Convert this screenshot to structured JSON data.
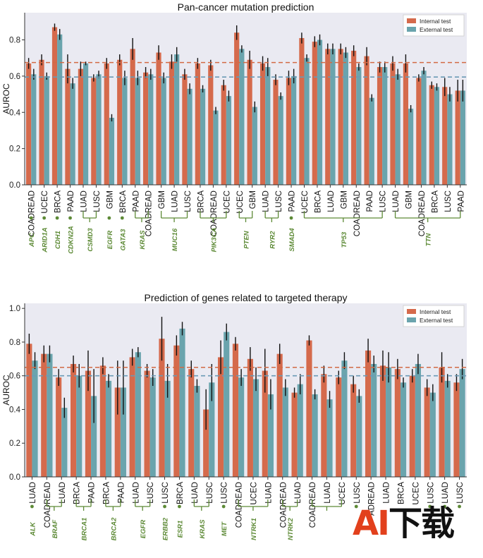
{
  "colors": {
    "internal": "#d56a4c",
    "external": "#6aa4ad",
    "internal_line": "#d26a44",
    "external_line": "#6b9ab5",
    "gene": "#5d8a36",
    "plot_bg": "#eaeaf2"
  },
  "chart_data": [
    {
      "type": "bar",
      "title": "Pan-cancer mutation prediction",
      "ylabel": "AUROC",
      "ylim": [
        0,
        0.95
      ],
      "yticks": [
        "0.0",
        "0.2",
        "0.4",
        "0.6",
        "0.8"
      ],
      "legend": {
        "placement": "top-right",
        "labels": [
          "Internal test",
          "External test"
        ]
      },
      "reference_lines": {
        "internal": 0.675,
        "external": 0.595
      },
      "grid": false,
      "categories": [
        "COADREAD",
        "UCEC",
        "BRCA",
        "PAAD",
        "LUAD",
        "LUSC",
        "GBM",
        "BRCA",
        "PAAD",
        "COADREAD",
        "GBM",
        "LUAD",
        "LUSC",
        "BRCA",
        "COADREAD",
        "UCEC",
        "UCEC",
        "GBM",
        "LUAD",
        "LUSC",
        "PAAD",
        "UCEC",
        "BRCA",
        "LUAD",
        "GBM",
        "COADREAD",
        "PAAD",
        "LUSC",
        "LUAD",
        "GBM",
        "COADREAD",
        "BRCA",
        "LUSC",
        "PAAD"
      ],
      "series": [
        {
          "name": "Internal test",
          "values": [
            0.67,
            0.69,
            0.87,
            0.64,
            0.64,
            0.59,
            0.67,
            0.69,
            0.75,
            0.62,
            0.73,
            0.68,
            0.61,
            0.67,
            0.66,
            0.55,
            0.84,
            0.69,
            0.67,
            0.58,
            0.59,
            0.81,
            0.79,
            0.75,
            0.75,
            0.74,
            0.71,
            0.65,
            0.67,
            0.67,
            0.59,
            0.55,
            0.54,
            0.52
          ],
          "errors": [
            0.03,
            0.03,
            0.02,
            0.08,
            0.04,
            0.02,
            0.03,
            0.03,
            0.06,
            0.03,
            0.04,
            0.04,
            0.03,
            0.03,
            0.03,
            0.03,
            0.04,
            0.05,
            0.04,
            0.03,
            0.04,
            0.03,
            0.03,
            0.03,
            0.03,
            0.03,
            0.05,
            0.03,
            0.04,
            0.05,
            0.02,
            0.02,
            0.05,
            0.06
          ]
        },
        {
          "name": "External test",
          "values": [
            0.61,
            0.6,
            0.83,
            0.56,
            0.67,
            0.61,
            0.37,
            0.59,
            0.59,
            0.61,
            0.59,
            0.72,
            0.53,
            0.53,
            0.41,
            0.49,
            0.75,
            0.43,
            0.65,
            0.49,
            0.6,
            0.7,
            0.8,
            0.75,
            0.73,
            0.65,
            0.48,
            0.65,
            0.61,
            0.42,
            0.63,
            0.54,
            0.5,
            0.52
          ],
          "errors": [
            0.03,
            0.02,
            0.03,
            0.03,
            0.01,
            0.02,
            0.02,
            0.04,
            0.04,
            0.03,
            0.03,
            0.04,
            0.03,
            0.02,
            0.02,
            0.03,
            0.02,
            0.03,
            0.05,
            0.02,
            0.04,
            0.02,
            0.03,
            0.03,
            0.03,
            0.02,
            0.02,
            0.03,
            0.03,
            0.02,
            0.02,
            0.02,
            0.04,
            0.06
          ]
        }
      ],
      "gene_groups": [
        {
          "gene": "APC",
          "start": 0,
          "end": 0
        },
        {
          "gene": "ARID1A",
          "start": 1,
          "end": 1
        },
        {
          "gene": "CDH1",
          "start": 2,
          "end": 2
        },
        {
          "gene": "CDKN2A",
          "start": 3,
          "end": 3
        },
        {
          "gene": "CSMD3",
          "start": 4,
          "end": 5
        },
        {
          "gene": "EGFR",
          "start": 6,
          "end": 6
        },
        {
          "gene": "GATA3",
          "start": 7,
          "end": 7
        },
        {
          "gene": "KRAS",
          "start": 8,
          "end": 9
        },
        {
          "gene": "MUC16",
          "start": 10,
          "end": 12
        },
        {
          "gene": "PIK3CA",
          "start": 13,
          "end": 15
        },
        {
          "gene": "PTEN",
          "start": 16,
          "end": 17
        },
        {
          "gene": "RYR2",
          "start": 18,
          "end": 19
        },
        {
          "gene": "SMAD4",
          "start": 20,
          "end": 20
        },
        {
          "gene": "TP53",
          "start": 21,
          "end": 27
        },
        {
          "gene": "TTN",
          "start": 28,
          "end": 33
        }
      ]
    },
    {
      "type": "bar",
      "title": "Prediction of genes related to targeted therapy",
      "ylabel": "AUROC",
      "ylim": [
        0,
        1.03
      ],
      "yticks": [
        "0.0",
        "0.2",
        "0.4",
        "0.6",
        "0.8",
        "1.0"
      ],
      "legend": {
        "placement": "top-right",
        "labels": [
          "Internal test",
          "External test"
        ]
      },
      "reference_lines": {
        "internal": 0.65,
        "external": 0.6
      },
      "grid": false,
      "categories": [
        "LUAD",
        "COADREAD",
        "LUAD",
        "BRCA",
        "PAAD",
        "BRCA",
        "PAAD",
        "LUAD",
        "LUSC",
        "LUSC",
        "BRCA",
        "LUAD",
        "LUSC",
        "LUSC",
        "COADREAD",
        "UCEC",
        "LUAD",
        "COADREAD",
        "LUAD",
        "COADREAD",
        "LUAD",
        "UCEC",
        "LUSC",
        "ADREAD",
        "LUAD",
        "BRCA",
        "UCEC",
        "LUSC",
        "LUAD",
        "LUSC"
      ],
      "series": [
        {
          "name": "Internal test",
          "values": [
            0.79,
            0.73,
            0.59,
            0.67,
            0.63,
            0.66,
            0.53,
            0.71,
            0.63,
            0.82,
            0.78,
            0.64,
            0.4,
            0.71,
            0.79,
            0.7,
            0.63,
            0.73,
            0.5,
            0.81,
            0.61,
            0.59,
            0.55,
            0.75,
            0.66,
            0.64,
            0.6,
            0.53,
            0.65,
            0.56
          ],
          "errors": [
            0.06,
            0.05,
            0.05,
            0.05,
            0.12,
            0.05,
            0.16,
            0.05,
            0.04,
            0.13,
            0.06,
            0.05,
            0.12,
            0.1,
            0.04,
            0.07,
            0.13,
            0.06,
            0.03,
            0.03,
            0.05,
            0.04,
            0.05,
            0.07,
            0.09,
            0.06,
            0.04,
            0.05,
            0.09,
            0.05
          ]
        },
        {
          "name": "External test",
          "values": [
            0.69,
            0.73,
            0.41,
            0.6,
            0.48,
            0.57,
            0.53,
            0.74,
            0.59,
            0.57,
            0.88,
            0.54,
            0.56,
            0.86,
            0.59,
            0.58,
            0.49,
            0.53,
            0.55,
            0.49,
            0.46,
            0.69,
            0.48,
            0.67,
            0.65,
            0.56,
            0.67,
            0.5,
            0.57,
            0.64
          ],
          "errors": [
            0.05,
            0.05,
            0.06,
            0.07,
            0.16,
            0.04,
            0.16,
            0.03,
            0.05,
            0.1,
            0.04,
            0.04,
            0.11,
            0.05,
            0.05,
            0.07,
            0.09,
            0.05,
            0.06,
            0.03,
            0.05,
            0.05,
            0.04,
            0.05,
            0.09,
            0.03,
            0.06,
            0.05,
            0.04,
            0.06
          ]
        }
      ],
      "gene_groups": [
        {
          "gene": "ALK",
          "start": 0,
          "end": 0
        },
        {
          "gene": "BRAF",
          "start": 1,
          "end": 2
        },
        {
          "gene": "BRCA1",
          "start": 3,
          "end": 4
        },
        {
          "gene": "BRCA2",
          "start": 5,
          "end": 6
        },
        {
          "gene": "EGFR",
          "start": 7,
          "end": 8
        },
        {
          "gene": "ERBB2",
          "start": 9,
          "end": 9
        },
        {
          "gene": "ESR1",
          "start": 10,
          "end": 10
        },
        {
          "gene": "KRAS",
          "start": 11,
          "end": 12
        },
        {
          "gene": "MET",
          "start": 13,
          "end": 13
        },
        {
          "gene": "NTRK1",
          "start": 14,
          "end": 16
        },
        {
          "gene": "NTRK2",
          "start": 17,
          "end": 18
        },
        {
          "gene": "",
          "start": 19,
          "end": 21
        },
        {
          "gene": "",
          "start": 22,
          "end": 22
        },
        {
          "gene": "",
          "start": 27,
          "end": 27
        },
        {
          "gene": "",
          "start": 28,
          "end": 28
        },
        {
          "gene": "",
          "start": 29,
          "end": 29
        }
      ]
    }
  ],
  "watermark": {
    "first": "AI",
    "rest": "下载"
  }
}
